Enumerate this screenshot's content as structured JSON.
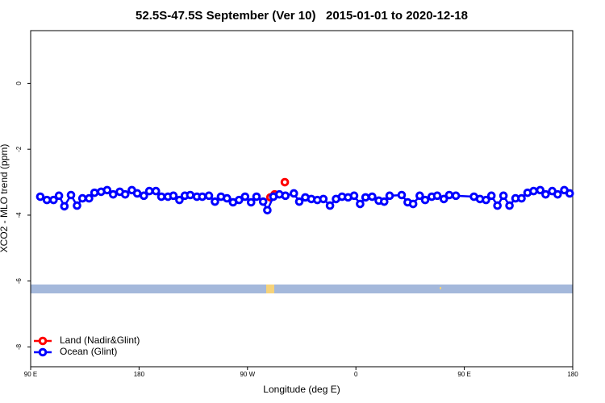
{
  "chart_data": {
    "type": "line",
    "title": "52.5S-47.5S September (Ver 10)   2015-01-01 to 2020-12-18",
    "xlabel": "Longitude (deg E)",
    "ylabel": "XCO2 - MLO trend (ppm)",
    "xlim": [
      90,
      540
    ],
    "xticks": [
      {
        "value": 90,
        "label": "90 E"
      },
      {
        "value": 180,
        "label": "180"
      },
      {
        "value": 270,
        "label": "90 W"
      },
      {
        "value": 360,
        "label": "0"
      },
      {
        "value": 450,
        "label": "90 E"
      },
      {
        "value": 540,
        "label": "180"
      }
    ],
    "ylim": [
      -8.6,
      1.6
    ],
    "yticks": [
      -8,
      -6,
      -4,
      -2,
      0
    ],
    "legend": "bottom-left",
    "series": [
      {
        "name": "Land (Nadir&Glint)",
        "color": "#ff0000",
        "x": [
          289,
          292.5,
          297,
          301
        ],
        "values": [
          -3.46,
          -3.37,
          null,
          -3.0
        ]
      },
      {
        "name": "Ocean (Glint)",
        "color": "#0000ff",
        "x": [
          98,
          103.5,
          109,
          113.5,
          118,
          123.5,
          128.5,
          133,
          138.5,
          143,
          148.5,
          153.5,
          158.5,
          164,
          168.5,
          174,
          178.5,
          184,
          188.5,
          194,
          198.5,
          204,
          208.5,
          213.5,
          218,
          222.5,
          228,
          232.5,
          238,
          243,
          248,
          253,
          258,
          263,
          268,
          273,
          277.5,
          283,
          286.5,
          291.5,
          296.5,
          301.5,
          308.5,
          313,
          318,
          323,
          328,
          333,
          338.5,
          343.5,
          348.5,
          353.5,
          358.5,
          363.5,
          368,
          373.5,
          379,
          383.5,
          388,
          398,
          403,
          407.5,
          413,
          417.5,
          423,
          427.5,
          433,
          437.5,
          443,
          458,
          463,
          468,
          472.5,
          477.5,
          482.5,
          487.5,
          492.5,
          497.5,
          502.5,
          507.5,
          513,
          517.5,
          523,
          527.5,
          533,
          537.5
        ],
        "values": [
          -3.44,
          -3.54,
          -3.54,
          -3.41,
          -3.73,
          -3.39,
          -3.71,
          -3.49,
          -3.49,
          -3.32,
          -3.29,
          -3.24,
          -3.37,
          -3.29,
          -3.37,
          -3.24,
          -3.34,
          -3.41,
          -3.27,
          -3.27,
          -3.44,
          -3.44,
          -3.41,
          -3.54,
          -3.41,
          -3.39,
          -3.44,
          -3.44,
          -3.41,
          -3.59,
          -3.44,
          -3.49,
          -3.61,
          -3.54,
          -3.44,
          -3.61,
          -3.44,
          -3.59,
          -3.85,
          -3.44,
          -3.37,
          -3.41,
          -3.34,
          -3.59,
          -3.46,
          -3.51,
          -3.54,
          -3.51,
          -3.71,
          -3.51,
          -3.44,
          -3.46,
          -3.41,
          -3.66,
          -3.46,
          -3.44,
          -3.56,
          -3.59,
          -3.41,
          -3.39,
          -3.61,
          -3.66,
          -3.41,
          -3.54,
          -3.44,
          -3.41,
          -3.51,
          -3.39,
          -3.41,
          -3.44,
          -3.51,
          -3.54,
          -3.41,
          -3.71,
          -3.41,
          -3.71,
          -3.49,
          -3.49,
          -3.32,
          -3.27,
          -3.24,
          -3.37,
          -3.27,
          -3.37,
          -3.24,
          -3.34
        ]
      }
    ]
  }
}
